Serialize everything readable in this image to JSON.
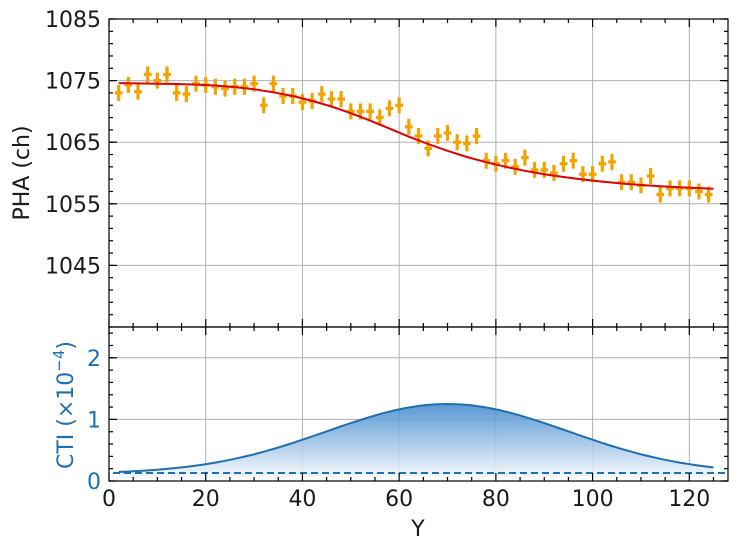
{
  "chart_data": [
    {
      "type": "scatter",
      "panel": "top",
      "xlabel": "",
      "ylabel": "PHA (ch)",
      "xlim": [
        0,
        128
      ],
      "ylim": [
        1035,
        1085
      ],
      "yticks": [
        1045,
        1055,
        1065,
        1075,
        1085
      ],
      "xticks": [
        0,
        20,
        40,
        60,
        80,
        100,
        120
      ],
      "grid": true,
      "colors": {
        "points": "#f2a300",
        "fit": "#e00000"
      },
      "series": [
        {
          "kind": "errorbar_points",
          "x": [
            2,
            4,
            6,
            8,
            10,
            12,
            14,
            16,
            18,
            20,
            22,
            24,
            26,
            28,
            30,
            32,
            34,
            36,
            38,
            40,
            42,
            44,
            46,
            48,
            50,
            52,
            54,
            56,
            58,
            60,
            62,
            64,
            66,
            68,
            70,
            72,
            74,
            76,
            78,
            80,
            82,
            84,
            86,
            88,
            90,
            92,
            94,
            96,
            98,
            100,
            102,
            104,
            106,
            108,
            110,
            112,
            114,
            116,
            118,
            120,
            122,
            124
          ],
          "y": [
            1073.0,
            1074.3,
            1073.2,
            1076.0,
            1075.0,
            1076.0,
            1073.0,
            1072.8,
            1074.5,
            1074.3,
            1074.0,
            1073.7,
            1074.0,
            1074.0,
            1074.5,
            1071.0,
            1074.5,
            1072.5,
            1072.5,
            1071.5,
            1071.7,
            1072.8,
            1072.0,
            1072.0,
            1070.0,
            1070.0,
            1070.0,
            1069.0,
            1070.5,
            1071.0,
            1067.5,
            1066.0,
            1064.0,
            1066.0,
            1066.5,
            1065.0,
            1064.8,
            1066.0,
            1062.0,
            1061.5,
            1062.0,
            1061.0,
            1062.5,
            1060.5,
            1060.5,
            1060.0,
            1061.5,
            1062.0,
            1059.8,
            1059.8,
            1061.5,
            1061.8,
            1058.5,
            1058.5,
            1058.0,
            1059.5,
            1056.5,
            1057.5,
            1057.5,
            1057.5,
            1057.0,
            1056.5
          ],
          "yerr": 1.3,
          "xerr": 0.8
        },
        {
          "kind": "fit_line",
          "x": [
            2,
            6,
            10,
            14,
            18,
            22,
            26,
            30,
            34,
            38,
            42,
            46,
            50,
            54,
            58,
            62,
            66,
            70,
            74,
            78,
            82,
            86,
            90,
            94,
            98,
            102,
            106,
            110,
            114,
            118,
            122,
            125
          ],
          "y": [
            1074.6,
            1074.55,
            1074.5,
            1074.45,
            1074.35,
            1074.2,
            1073.95,
            1073.6,
            1073.1,
            1072.5,
            1071.7,
            1070.8,
            1069.7,
            1068.5,
            1067.2,
            1065.9,
            1064.7,
            1063.6,
            1062.6,
            1061.75,
            1061.0,
            1060.35,
            1059.8,
            1059.35,
            1058.95,
            1058.6,
            1058.3,
            1058.05,
            1057.85,
            1057.7,
            1057.55,
            1057.45
          ]
        }
      ]
    },
    {
      "type": "area",
      "panel": "bottom",
      "xlabel": "Y",
      "ylabel_main": "CTI (×10",
      "ylabel_exp": "−4",
      "ylabel_close": ")",
      "xlim": [
        0,
        128
      ],
      "ylim": [
        0,
        2.5
      ],
      "yticks": [
        0,
        1,
        2
      ],
      "xticks": [
        0,
        20,
        40,
        60,
        80,
        100,
        120
      ],
      "x_tick_labels": [
        "0",
        "20",
        "40",
        "60",
        "80",
        "100",
        "120"
      ],
      "grid": true,
      "colors": {
        "curve": "#1f6fb3",
        "fill_top": "#4a8fd0",
        "fill_bottom": "#ffffff",
        "baseline": "#1f6fb3"
      },
      "baseline": 0.13,
      "curve": {
        "peak_x": 70,
        "peak_y": 1.25,
        "sigma": 25,
        "x_start": 2,
        "x_end": 125
      }
    }
  ]
}
